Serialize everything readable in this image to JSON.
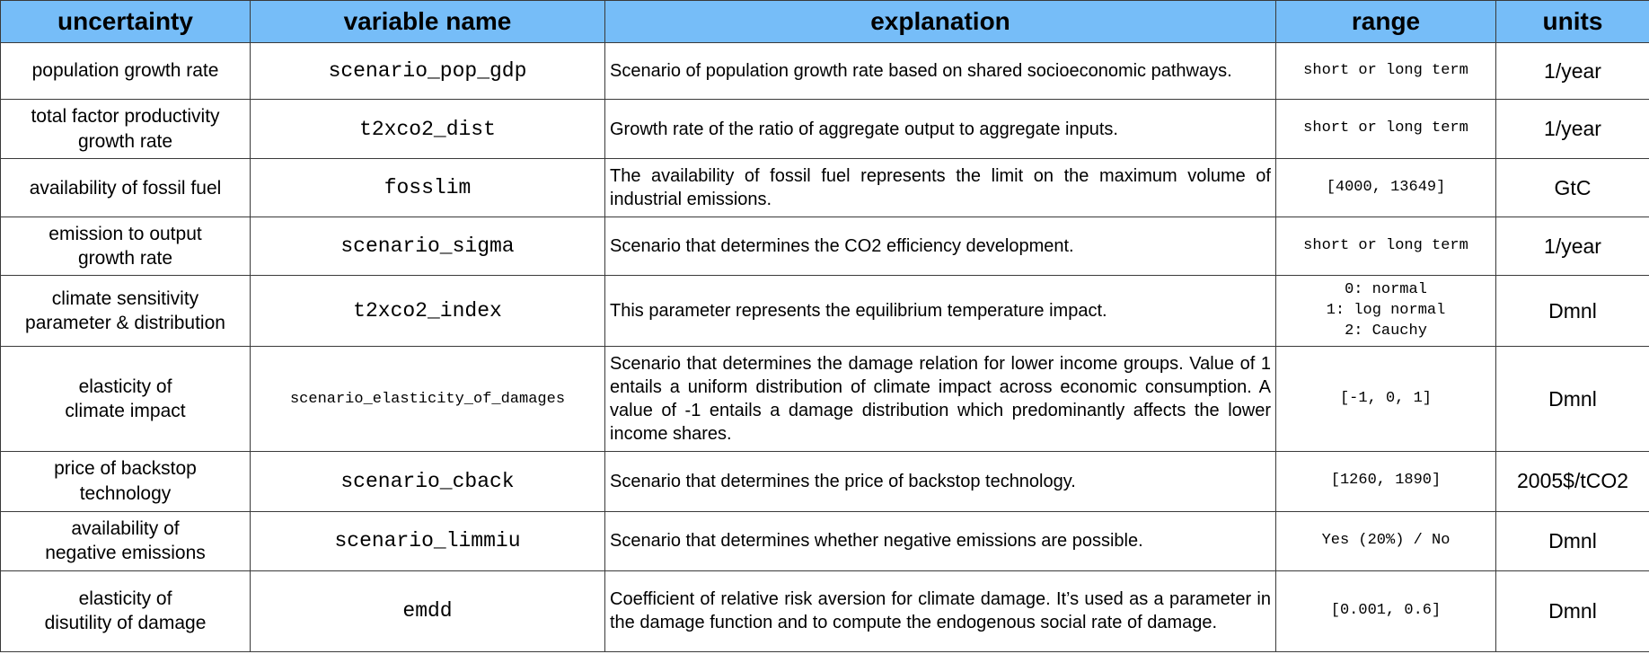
{
  "table": {
    "header_bg": "#76bdf8",
    "headers": [
      "uncertainty",
      "variable name",
      "explanation",
      "range",
      "units"
    ],
    "rows": [
      {
        "uncertainty": "population growth rate",
        "variable": "scenario_pop_gdp",
        "explanation": "Scenario of population growth rate based on shared socioeconomic pathways.",
        "range": "short or long term",
        "units": "1/year"
      },
      {
        "uncertainty": "total factor productivity\ngrowth rate",
        "variable": "t2xco2_dist",
        "explanation": "Growth rate of the ratio of aggregate output to aggregate inputs.",
        "range": "short or long term",
        "units": "1/year"
      },
      {
        "uncertainty": "availability of fossil fuel",
        "variable": "fosslim",
        "explanation": "The availability of fossil fuel represents the limit on the maximum volume of industrial emissions.",
        "range": "[4000, 13649]",
        "units": "GtC"
      },
      {
        "uncertainty": "emission to output\ngrowth rate",
        "variable": "scenario_sigma",
        "explanation": "Scenario that determines the CO2 efficiency development.",
        "range": "short or long term",
        "units": "1/year"
      },
      {
        "uncertainty": "climate sensitivity\nparameter & distribution",
        "variable": "t2xco2_index",
        "explanation": "This parameter represents the equilibrium temperature impact.",
        "range": "0: normal\n1: log normal\n2: Cauchy",
        "units": "Dmnl"
      },
      {
        "uncertainty": "elasticity of\nclimate impact",
        "variable": "scenario_elasticity_of_damages",
        "explanation": "Scenario that determines the damage relation for lower income groups. Value of 1 entails a uniform distribution of climate impact across economic consumption. A value of -1 entails a damage distribution which predominantly affects the lower income shares.",
        "range": "[-1, 0, 1]",
        "units": "Dmnl"
      },
      {
        "uncertainty": "price of backstop\ntechnology",
        "variable": "scenario_cback",
        "explanation": "Scenario that determines the price of backstop technology.",
        "range": "[1260, 1890]",
        "units": "2005$/tCO2"
      },
      {
        "uncertainty": "availability of\nnegative emissions",
        "variable": "scenario_limmiu",
        "explanation": "Scenario that determines whether negative emissions are possible.",
        "range": "Yes (20%) / No",
        "units": "Dmnl"
      },
      {
        "uncertainty": "elasticity of\ndisutility of damage",
        "variable": "emdd",
        "explanation": "Coefficient of relative risk aversion for climate damage. It’s used as a parameter in the damage function and to compute the endogenous social rate of damage.",
        "range": "[0.001, 0.6]",
        "units": "Dmnl"
      }
    ]
  }
}
